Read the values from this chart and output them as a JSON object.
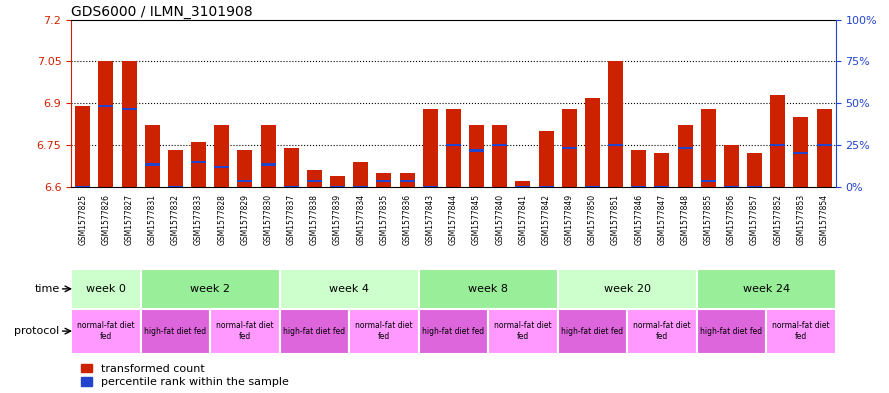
{
  "title": "GDS6000 / ILMN_3101908",
  "samples": [
    "GSM1577825",
    "GSM1577826",
    "GSM1577827",
    "GSM1577831",
    "GSM1577832",
    "GSM1577833",
    "GSM1577828",
    "GSM1577829",
    "GSM1577830",
    "GSM1577837",
    "GSM1577838",
    "GSM1577839",
    "GSM1577834",
    "GSM1577835",
    "GSM1577836",
    "GSM1577843",
    "GSM1577844",
    "GSM1577845",
    "GSM1577840",
    "GSM1577841",
    "GSM1577842",
    "GSM1577849",
    "GSM1577850",
    "GSM1577851",
    "GSM1577846",
    "GSM1577847",
    "GSM1577848",
    "GSM1577855",
    "GSM1577856",
    "GSM1577857",
    "GSM1577852",
    "GSM1577853",
    "GSM1577854"
  ],
  "red_values": [
    6.89,
    7.05,
    7.05,
    6.82,
    6.73,
    6.76,
    6.82,
    6.73,
    6.82,
    6.74,
    6.66,
    6.64,
    6.69,
    6.65,
    6.65,
    6.88,
    6.88,
    6.82,
    6.82,
    6.62,
    6.8,
    6.88,
    6.92,
    7.05,
    6.73,
    6.72,
    6.82,
    6.88,
    6.75,
    6.72,
    6.93,
    6.85,
    6.88
  ],
  "blue_values": [
    6.6,
    6.89,
    6.88,
    6.68,
    6.6,
    6.69,
    6.67,
    6.62,
    6.68,
    6.6,
    6.62,
    6.6,
    6.6,
    6.62,
    6.62,
    6.6,
    6.75,
    6.73,
    6.75,
    6.6,
    6.6,
    6.74,
    6.6,
    6.75,
    6.6,
    6.6,
    6.74,
    6.62,
    6.6,
    6.6,
    6.75,
    6.72,
    6.75
  ],
  "ymin": 6.6,
  "ymax": 7.2,
  "yticks": [
    6.6,
    6.75,
    6.9,
    7.05,
    7.2
  ],
  "right_yticks": [
    0,
    25,
    50,
    75,
    100
  ],
  "right_ytick_labels": [
    "0%",
    "25%",
    "50%",
    "75%",
    "100%"
  ],
  "time_groups": [
    {
      "label": "week 0",
      "start": 0,
      "end": 3,
      "color": "#ccffcc"
    },
    {
      "label": "week 2",
      "start": 3,
      "end": 9,
      "color": "#99ee99"
    },
    {
      "label": "week 4",
      "start": 9,
      "end": 15,
      "color": "#ccffcc"
    },
    {
      "label": "week 8",
      "start": 15,
      "end": 21,
      "color": "#99ee99"
    },
    {
      "label": "week 20",
      "start": 21,
      "end": 27,
      "color": "#ccffcc"
    },
    {
      "label": "week 24",
      "start": 27,
      "end": 33,
      "color": "#99ee99"
    }
  ],
  "protocol_groups": [
    {
      "label": "normal-fat diet\nfed",
      "start": 0,
      "end": 3,
      "color": "#ff99ff"
    },
    {
      "label": "high-fat diet fed",
      "start": 3,
      "end": 6,
      "color": "#dd66dd"
    },
    {
      "label": "normal-fat diet\nfed",
      "start": 6,
      "end": 9,
      "color": "#ff99ff"
    },
    {
      "label": "high-fat diet fed",
      "start": 9,
      "end": 12,
      "color": "#dd66dd"
    },
    {
      "label": "normal-fat diet\nfed",
      "start": 12,
      "end": 15,
      "color": "#ff99ff"
    },
    {
      "label": "high-fat diet fed",
      "start": 15,
      "end": 18,
      "color": "#dd66dd"
    },
    {
      "label": "normal-fat diet\nfed",
      "start": 18,
      "end": 21,
      "color": "#ff99ff"
    },
    {
      "label": "high-fat diet fed",
      "start": 21,
      "end": 24,
      "color": "#dd66dd"
    },
    {
      "label": "normal-fat diet\nfed",
      "start": 24,
      "end": 27,
      "color": "#ff99ff"
    },
    {
      "label": "high-fat diet fed",
      "start": 27,
      "end": 30,
      "color": "#dd66dd"
    },
    {
      "label": "normal-fat diet\nfed",
      "start": 30,
      "end": 33,
      "color": "#ff99ff"
    }
  ],
  "bar_color_red": "#cc2200",
  "bar_color_blue": "#2244cc",
  "bg_color": "#ffffff",
  "tick_color_left": "#cc2200",
  "tick_color_right": "#2244cc",
  "label_bg_color": "#dddddd"
}
